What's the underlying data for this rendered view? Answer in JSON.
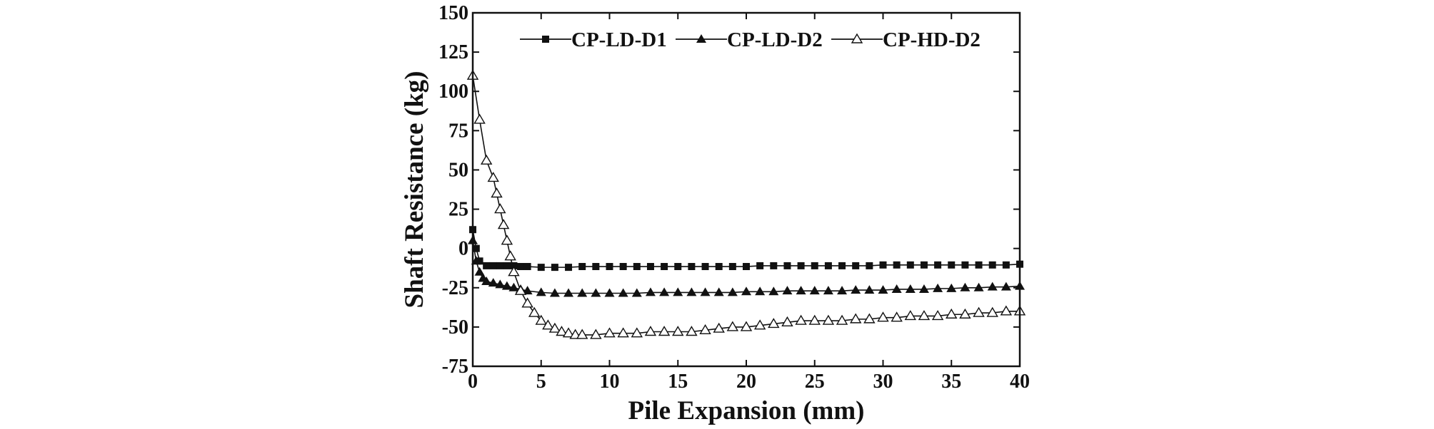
{
  "chart_data": {
    "type": "line",
    "xlabel": "Pile Expansion (mm)",
    "ylabel": "Shaft Resistance (kg)",
    "xlim": [
      0,
      40
    ],
    "ylim": [
      -75,
      150
    ],
    "xticks": [
      0,
      5,
      10,
      15,
      20,
      25,
      30,
      35,
      40
    ],
    "yticks": [
      -75,
      -50,
      -25,
      0,
      25,
      50,
      75,
      100,
      125,
      150
    ],
    "grid": false,
    "legend_position": "top-right",
    "series": [
      {
        "name": "CP-LD-D1",
        "marker": "filled-square",
        "color": "#111111",
        "x": [
          0,
          0.25,
          0.5,
          1,
          1.5,
          2,
          2.5,
          3,
          3.5,
          4,
          5,
          6,
          7,
          8,
          9,
          10,
          11,
          12,
          13,
          14,
          15,
          16,
          17,
          18,
          19,
          20,
          21,
          22,
          23,
          24,
          25,
          26,
          27,
          28,
          29,
          30,
          31,
          32,
          33,
          34,
          35,
          36,
          37,
          38,
          39,
          40
        ],
        "y": [
          12,
          0,
          -8,
          -11,
          -11,
          -11,
          -11,
          -11,
          -11.5,
          -11.5,
          -12,
          -12,
          -12,
          -11.5,
          -11.5,
          -11.5,
          -11.5,
          -11.5,
          -11.5,
          -11.5,
          -11.5,
          -11.5,
          -11.5,
          -11.5,
          -11.5,
          -11.5,
          -11,
          -11,
          -11,
          -11,
          -11,
          -11,
          -11,
          -11,
          -11,
          -10.5,
          -10.5,
          -10.5,
          -10.5,
          -10.5,
          -10.5,
          -10.5,
          -10.5,
          -10.5,
          -10.5,
          -10
        ]
      },
      {
        "name": "CP-LD-D2",
        "marker": "filled-triangle",
        "color": "#111111",
        "x": [
          0,
          0.25,
          0.5,
          0.75,
          1,
          1.5,
          2,
          2.5,
          3,
          3.5,
          4,
          5,
          6,
          7,
          8,
          9,
          10,
          11,
          12,
          13,
          14,
          15,
          16,
          17,
          18,
          19,
          20,
          21,
          22,
          23,
          24,
          25,
          26,
          27,
          28,
          29,
          30,
          31,
          32,
          33,
          34,
          35,
          36,
          37,
          38,
          39,
          40
        ],
        "y": [
          5,
          -8,
          -15,
          -19,
          -21,
          -22,
          -23,
          -24,
          -25,
          -26,
          -27,
          -28,
          -28.5,
          -28.5,
          -28.5,
          -28.5,
          -28.5,
          -28.5,
          -28.5,
          -28,
          -28,
          -28,
          -28,
          -28,
          -28,
          -28,
          -27.5,
          -27.5,
          -27.5,
          -27,
          -27,
          -27,
          -27,
          -27,
          -26.5,
          -26.5,
          -26.5,
          -26,
          -26,
          -26,
          -25.5,
          -25.5,
          -25,
          -25,
          -24.5,
          -24.5,
          -24
        ]
      },
      {
        "name": "CP-HD-D2",
        "marker": "open-triangle",
        "color": "#111111",
        "x": [
          0,
          0.5,
          1,
          1.5,
          1.75,
          2,
          2.25,
          2.5,
          2.75,
          3,
          3.5,
          4,
          4.5,
          5,
          5.5,
          6,
          6.5,
          7,
          7.5,
          8,
          9,
          10,
          11,
          12,
          13,
          14,
          15,
          16,
          17,
          18,
          19,
          20,
          21,
          22,
          23,
          24,
          25,
          26,
          27,
          28,
          29,
          30,
          31,
          32,
          33,
          34,
          35,
          36,
          37,
          38,
          39,
          40
        ],
        "y": [
          110,
          82,
          56,
          45,
          35,
          25,
          15,
          5,
          -5,
          -15,
          -27,
          -35,
          -41,
          -46,
          -49,
          -51,
          -53,
          -54,
          -55,
          -55,
          -55,
          -54,
          -54,
          -54,
          -53,
          -53,
          -53,
          -53,
          -52,
          -51,
          -50,
          -50,
          -49,
          -48,
          -47,
          -46,
          -46,
          -46,
          -46,
          -45,
          -45,
          -44,
          -44,
          -43,
          -43,
          -43,
          -42,
          -42,
          -41,
          -41,
          -40,
          -40
        ]
      }
    ]
  }
}
